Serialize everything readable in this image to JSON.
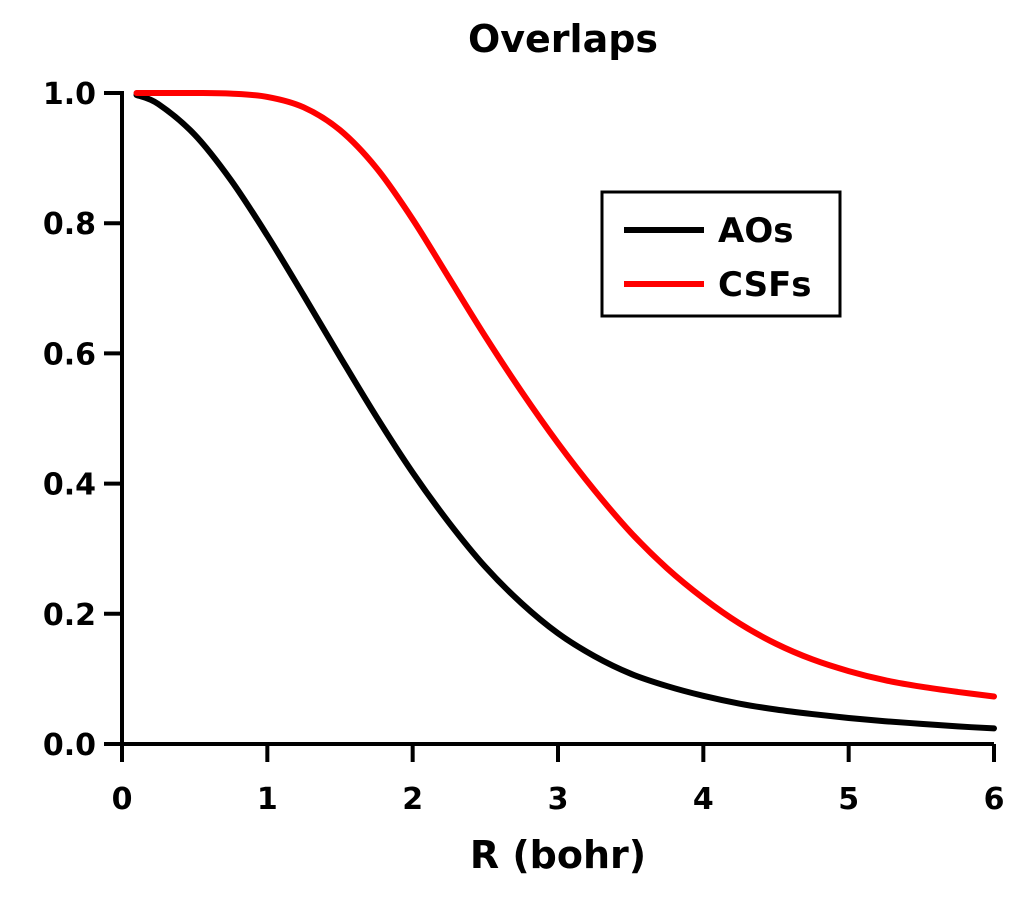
{
  "chart_data": {
    "type": "line",
    "title": "Overlaps",
    "xlabel": "R (bohr)",
    "ylabel": "",
    "xlim": [
      0,
      6
    ],
    "ylim": [
      0,
      1
    ],
    "xticks": [
      "0",
      "1",
      "2",
      "3",
      "4",
      "5",
      "6"
    ],
    "yticks": [
      "0.0",
      "0.2",
      "0.4",
      "0.6",
      "0.8",
      "1.0"
    ],
    "legend_position": "top-right",
    "x": [
      0.1,
      0.25,
      0.5,
      0.75,
      1.0,
      1.25,
      1.5,
      1.75,
      2.0,
      2.25,
      2.5,
      2.75,
      3.0,
      3.25,
      3.5,
      3.75,
      4.0,
      4.25,
      4.5,
      4.75,
      5.0,
      5.25,
      5.5,
      5.75,
      6.0
    ],
    "series": [
      {
        "name": "AOs",
        "color": "#000000",
        "values": [
          0.997,
          0.983,
          0.936,
          0.866,
          0.781,
          0.689,
          0.595,
          0.503,
          0.417,
          0.34,
          0.272,
          0.216,
          0.17,
          0.135,
          0.108,
          0.089,
          0.074,
          0.062,
          0.053,
          0.046,
          0.04,
          0.035,
          0.031,
          0.027,
          0.024
        ]
      },
      {
        "name": "CSFs",
        "color": "#ff0000",
        "values": [
          1.0,
          1.0,
          1.0,
          0.999,
          0.994,
          0.978,
          0.943,
          0.885,
          0.806,
          0.716,
          0.626,
          0.541,
          0.462,
          0.39,
          0.325,
          0.27,
          0.224,
          0.185,
          0.154,
          0.13,
          0.112,
          0.098,
          0.088,
          0.08,
          0.073
        ]
      }
    ]
  }
}
